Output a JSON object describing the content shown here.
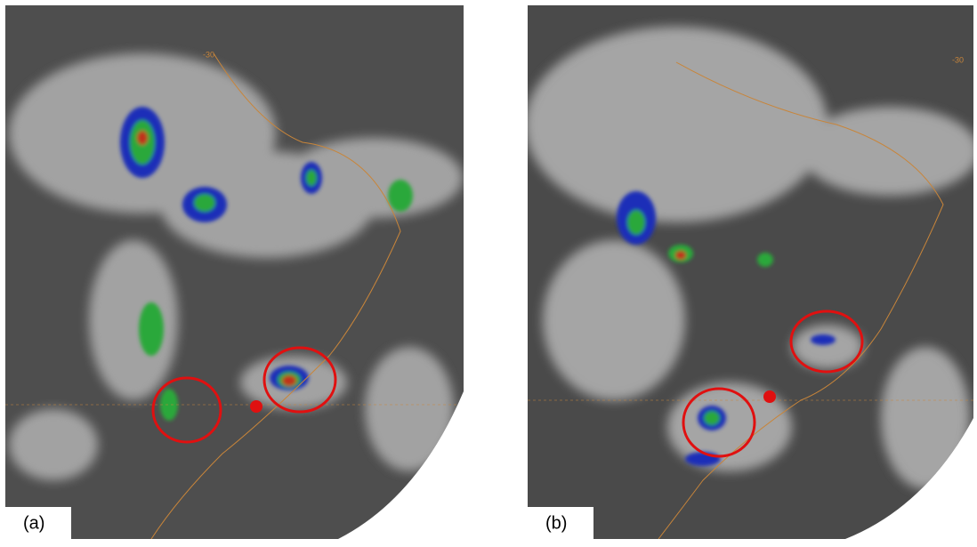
{
  "panels": [
    {
      "label": "(a)",
      "grid_label": "-30"
    },
    {
      "label": "(b)",
      "grid_label": "-30"
    }
  ]
}
